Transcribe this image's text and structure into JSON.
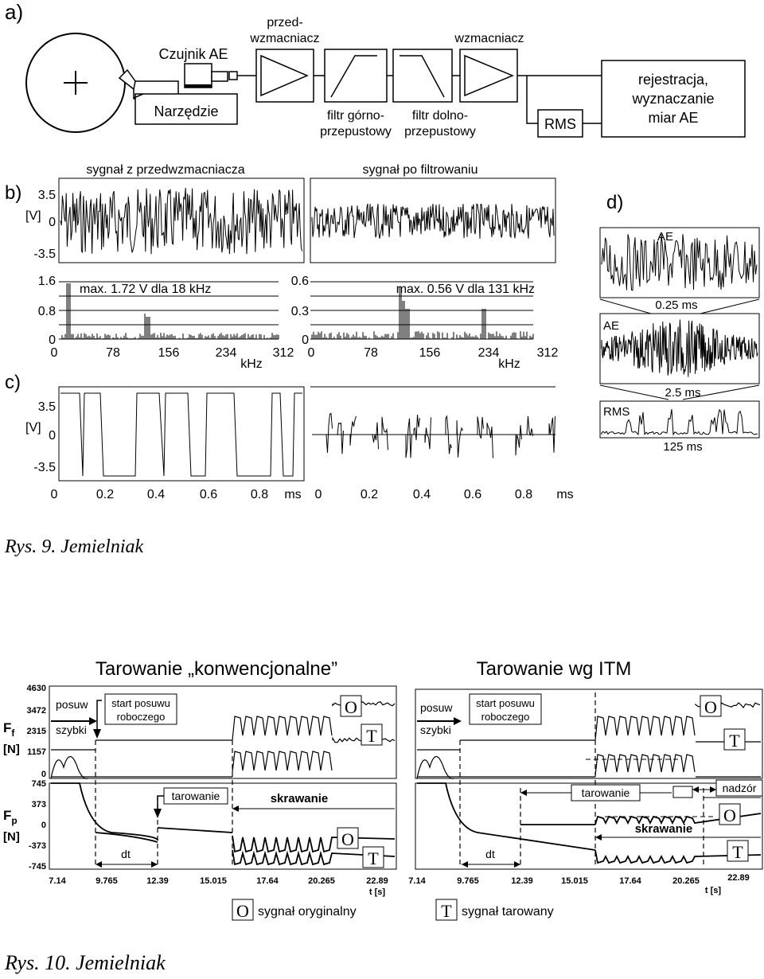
{
  "fig9": {
    "panel_a_label": "a)",
    "panel_b_label": "b)",
    "panel_c_label": "c)",
    "panel_d_label": "d)",
    "sensor": "Czujnik AE",
    "tool": "Narzędzie",
    "preamp_line1": "przed-",
    "preamp_line2": "wzmacniacz",
    "amp": "wzmacniacz",
    "hp_line1": "filtr górno-",
    "hp_line2": "przepustowy",
    "lp_line1": "filtr dolno-",
    "lp_line2": "przepustowy",
    "rms_box": "RMS",
    "rec_line1": "rejestracja,",
    "rec_line2": "wyznaczanie",
    "rec_line3": "miar AE",
    "title_left": "sygnał z przedwzmacniacza",
    "title_right": "sygnał po filtrowaniu",
    "b_y_top": "3.5",
    "b_y_unit": "[V]",
    "b_y_zero": "0",
    "b_y_bot": "-3.5",
    "spec_left_max": "max. 1.72 V dla 18 kHz",
    "spec_right_max": "max. 0.56 V dla 131 kHz",
    "spec_left_ticks_y": [
      "1.6",
      "0.8",
      "0"
    ],
    "spec_right_ticks_y": [
      "0.6",
      "0.3",
      "0"
    ],
    "spec_x_ticks": [
      "0",
      "78",
      "156",
      "234",
      "312"
    ],
    "spec_x_unit": "kHz",
    "c_y_top": "3.5",
    "c_y_unit": "[V]",
    "c_y_zero": "0",
    "c_y_bot": "-3.5",
    "time_ticks": [
      "0",
      "0.2",
      "0.4",
      "0.6",
      "0.8"
    ],
    "time_unit": "ms",
    "d_ae1": "AE",
    "d_scale1": "0.25 ms",
    "d_ae2": "AE",
    "d_scale2": "2.5 ms",
    "d_rms": "RMS",
    "d_scale3": "125 ms",
    "caption": "Rys. 9. Jemielniak"
  },
  "fig10": {
    "title_left": "Tarowanie „konwencjonalne”",
    "title_right": "Tarowanie wg ITM",
    "ff_label": "F",
    "ff_sub": "f",
    "ff_unit": "[N]",
    "fp_label": "F",
    "fp_sub": "p",
    "fp_unit": "[N]",
    "ff_ticks": [
      "4630",
      "3472",
      "2315",
      "1157",
      "0"
    ],
    "fp_ticks": [
      "745",
      "373",
      "0",
      "-373",
      "-745"
    ],
    "x_ticks": [
      "7.14",
      "9.765",
      "12.39",
      "15.015",
      "17.64",
      "20.265",
      "22.89"
    ],
    "x_unit": "t [s]",
    "posuw": "posuw",
    "szybki": "szybki",
    "start_line1": "start posuwu",
    "start_line2": "roboczego",
    "tarowanie": "tarowanie",
    "skrawanie": "skrawanie",
    "nadzor": "nadzór",
    "dt": "dt",
    "O": "O",
    "T": "T",
    "legend_orig": "sygnał oryginalny",
    "legend_tar": "sygnał tarowany",
    "caption": "Rys. 10. Jemielniak"
  }
}
